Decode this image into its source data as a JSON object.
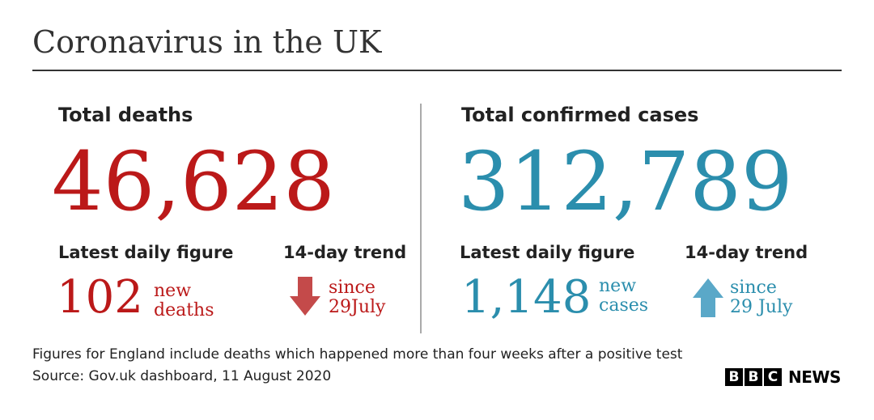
{
  "title": "Coronavirus in the UK",
  "colors": {
    "deaths": "#bb1919",
    "cases": "#2b8ead",
    "deaths_arrow": "#c44a4a",
    "cases_arrow": "#5aa8c8"
  },
  "deaths": {
    "heading": "Total deaths",
    "total": "46,628",
    "daily_label": "Latest daily figure",
    "daily_value": "102",
    "daily_unit_line1": "new",
    "daily_unit_line2": "deaths",
    "trend_label": "14-day trend",
    "trend_icon": "arrow-down-icon",
    "trend_line1": "since",
    "trend_line2": "29July"
  },
  "cases": {
    "heading": "Total confirmed cases",
    "total": "312,789",
    "daily_label": "Latest daily figure",
    "daily_value": "1,148",
    "daily_unit_line1": "new",
    "daily_unit_line2": "cases",
    "trend_label": "14-day trend",
    "trend_icon": "arrow-up-icon",
    "trend_line1": "since",
    "trend_line2": "29 July"
  },
  "footer": {
    "note": "Figures for England include deaths which happened more than four weeks after a positive test",
    "source": "Source: Gov.uk dashboard, 11 August 2020",
    "logo_letters": [
      "B",
      "B",
      "C"
    ],
    "logo_word": "NEWS"
  }
}
